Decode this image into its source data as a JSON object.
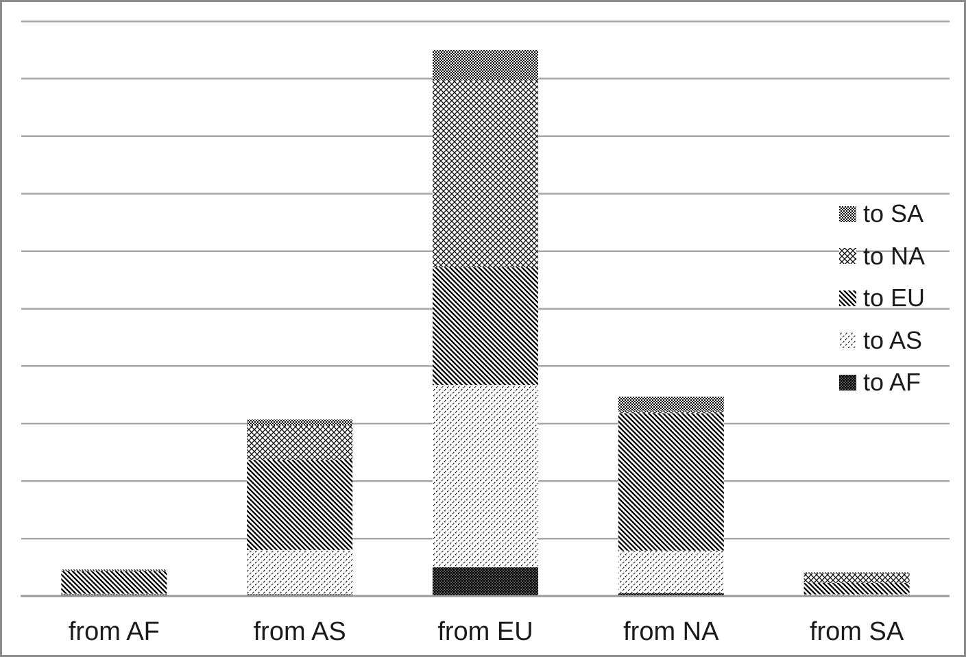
{
  "chart_data": {
    "type": "bar",
    "stacked": true,
    "title": "",
    "xlabel": "",
    "ylabel": "",
    "categories": [
      "from AF",
      "from AS",
      "from EU",
      "from NA",
      "from SA"
    ],
    "stack_order": "bottom-to-top",
    "series": [
      {
        "name": "to AF",
        "pattern": "black-with-white-dots",
        "values": [
          0.3,
          0.3,
          5.0,
          0.5,
          0.1
        ]
      },
      {
        "name": "to AS",
        "pattern": "sparse-dots",
        "values": [
          0.1,
          7.7,
          31.7,
          7.4,
          0.2
        ]
      },
      {
        "name": "to EU",
        "pattern": "diagonal-stripes",
        "values": [
          3.9,
          15.7,
          20.5,
          23.9,
          2.0
        ]
      },
      {
        "name": "to NA",
        "pattern": "diamond-crosshatch",
        "values": [
          0.2,
          6.0,
          32.5,
          0.4,
          1.6
        ]
      },
      {
        "name": "to SA",
        "pattern": "checkerboard",
        "values": [
          0.1,
          1.0,
          5.3,
          2.5,
          0.2
        ]
      }
    ],
    "legend": [
      "to SA",
      "to NA",
      "to EU",
      "to AS",
      "to AF"
    ],
    "legend_position": "right-inside",
    "ylim": [
      0,
      100
    ],
    "gridline_step": 10,
    "grid": true,
    "y_tick_labels_visible": false,
    "colors": {
      "foreground": "#000000",
      "background": "#ffffff",
      "gridline": "#a6a6a6",
      "axis": "#9a9a9a",
      "text": "#1a1a1a",
      "border": "#8a8a8a"
    }
  }
}
